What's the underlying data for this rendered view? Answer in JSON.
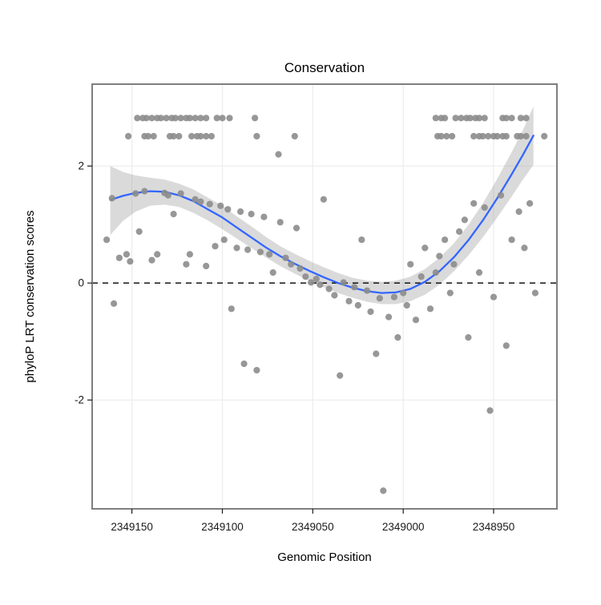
{
  "chart_data": {
    "type": "scatter",
    "title": "Conservation",
    "xlabel": "Genomic Position",
    "ylabel": "phyloP LRT conservation scores",
    "x_axis_reversed": true,
    "x_domain": [
      2349172,
      2348915
    ],
    "y_domain": [
      -3.86,
      3.4
    ],
    "x_ticks": [
      2349150,
      2349100,
      2349050,
      2349000,
      2348950
    ],
    "x_tick_labels": [
      "2349150",
      "2349100",
      "2349050",
      "2349000",
      "2348950"
    ],
    "y_ticks": [
      -2,
      0,
      2
    ],
    "y_tick_labels": [
      "-2",
      "0",
      "2"
    ],
    "grid": true,
    "legend": "none",
    "reference_line_y": 0,
    "colors": {
      "point": "#8C8C8C",
      "line": "#3366FF",
      "band": "#9E9E9E",
      "panel_bg": "#FFFFFF",
      "grid": "#ECECEC",
      "border": "#7F7F7F",
      "reference_line": "#000000",
      "tick": "#1A1A1A"
    },
    "points": [
      [
        2349147,
        2.82
      ],
      [
        2349144,
        2.82
      ],
      [
        2349142,
        2.82
      ],
      [
        2349139,
        2.82
      ],
      [
        2349136,
        2.82
      ],
      [
        2349134,
        2.82
      ],
      [
        2349131,
        2.82
      ],
      [
        2349128,
        2.82
      ],
      [
        2349126,
        2.82
      ],
      [
        2349123,
        2.82
      ],
      [
        2349120,
        2.82
      ],
      [
        2349118,
        2.82
      ],
      [
        2349115,
        2.82
      ],
      [
        2349112,
        2.82
      ],
      [
        2349109,
        2.82
      ],
      [
        2349103,
        2.82
      ],
      [
        2349100,
        2.82
      ],
      [
        2349096,
        2.82
      ],
      [
        2349082,
        2.82
      ],
      [
        2348982,
        2.82
      ],
      [
        2348979,
        2.82
      ],
      [
        2348977,
        2.82
      ],
      [
        2348971,
        2.82
      ],
      [
        2348968,
        2.82
      ],
      [
        2348965,
        2.82
      ],
      [
        2348963,
        2.82
      ],
      [
        2348960,
        2.82
      ],
      [
        2348958,
        2.82
      ],
      [
        2348955,
        2.82
      ],
      [
        2348945,
        2.82
      ],
      [
        2348943,
        2.82
      ],
      [
        2348940,
        2.82
      ],
      [
        2348935,
        2.82
      ],
      [
        2348932,
        2.82
      ],
      [
        2349152,
        2.51
      ],
      [
        2349143,
        2.51
      ],
      [
        2349141,
        2.51
      ],
      [
        2349138,
        2.51
      ],
      [
        2349129,
        2.51
      ],
      [
        2349127,
        2.51
      ],
      [
        2349124,
        2.51
      ],
      [
        2349117,
        2.51
      ],
      [
        2349114,
        2.51
      ],
      [
        2349112,
        2.51
      ],
      [
        2349109,
        2.51
      ],
      [
        2349106,
        2.51
      ],
      [
        2349081,
        2.51
      ],
      [
        2349060,
        2.51
      ],
      [
        2348981,
        2.51
      ],
      [
        2348979,
        2.51
      ],
      [
        2348976,
        2.51
      ],
      [
        2348973,
        2.51
      ],
      [
        2348961,
        2.51
      ],
      [
        2348958,
        2.51
      ],
      [
        2348956,
        2.51
      ],
      [
        2348953,
        2.51
      ],
      [
        2348950,
        2.51
      ],
      [
        2348948,
        2.51
      ],
      [
        2348945,
        2.51
      ],
      [
        2348943,
        2.51
      ],
      [
        2348937,
        2.51
      ],
      [
        2348935,
        2.51
      ],
      [
        2348932,
        2.51
      ],
      [
        2348922,
        2.51
      ],
      [
        2349164,
        0.74
      ],
      [
        2349161,
        1.45
      ],
      [
        2349160,
        -0.35
      ],
      [
        2349157,
        0.43
      ],
      [
        2349153,
        0.49
      ],
      [
        2349151,
        0.37
      ],
      [
        2349148,
        1.53
      ],
      [
        2349146,
        0.88
      ],
      [
        2349143,
        1.57
      ],
      [
        2349139,
        0.39
      ],
      [
        2349136,
        0.49
      ],
      [
        2349132,
        1.54
      ],
      [
        2349130,
        1.5
      ],
      [
        2349127,
        1.18
      ],
      [
        2349123,
        1.53
      ],
      [
        2349120,
        0.32
      ],
      [
        2349118,
        0.49
      ],
      [
        2349115,
        1.43
      ],
      [
        2349112,
        1.39
      ],
      [
        2349109,
        0.29
      ],
      [
        2349107,
        1.35
      ],
      [
        2349104,
        0.63
      ],
      [
        2349101,
        1.32
      ],
      [
        2349099,
        0.74
      ],
      [
        2349097,
        1.26
      ],
      [
        2349095,
        -0.44
      ],
      [
        2349092,
        0.6
      ],
      [
        2349090,
        1.22
      ],
      [
        2349088,
        -1.38
      ],
      [
        2349086,
        0.57
      ],
      [
        2349084,
        1.18
      ],
      [
        2349081,
        -1.49
      ],
      [
        2349079,
        0.53
      ],
      [
        2349077,
        1.13
      ],
      [
        2349074,
        0.49
      ],
      [
        2349072,
        0.18
      ],
      [
        2349069,
        2.2
      ],
      [
        2349068,
        1.04
      ],
      [
        2349065,
        0.43
      ],
      [
        2349062,
        0.32
      ],
      [
        2349059,
        0.94
      ],
      [
        2349057,
        0.25
      ],
      [
        2349054,
        0.11
      ],
      [
        2349051,
        0.01
      ],
      [
        2349048,
        0.07
      ],
      [
        2349046,
        -0.03
      ],
      [
        2349044,
        1.43
      ],
      [
        2349041,
        -0.1
      ],
      [
        2349038,
        -0.21
      ],
      [
        2349035,
        -1.58
      ],
      [
        2349033,
        0.01
      ],
      [
        2349030,
        -0.31
      ],
      [
        2349027,
        -0.07
      ],
      [
        2349025,
        -0.38
      ],
      [
        2349023,
        0.74
      ],
      [
        2349020,
        -0.13
      ],
      [
        2349018,
        -0.49
      ],
      [
        2349015,
        -1.21
      ],
      [
        2349013,
        -0.26
      ],
      [
        2349011,
        -3.55
      ],
      [
        2349008,
        -0.58
      ],
      [
        2349005,
        -0.24
      ],
      [
        2349003,
        -0.93
      ],
      [
        2349000,
        -0.17
      ],
      [
        2348998,
        -0.38
      ],
      [
        2348996,
        0.32
      ],
      [
        2348993,
        -0.63
      ],
      [
        2348990,
        0.11
      ],
      [
        2348988,
        0.6
      ],
      [
        2348985,
        -0.44
      ],
      [
        2348982,
        0.18
      ],
      [
        2348980,
        0.46
      ],
      [
        2348977,
        0.74
      ],
      [
        2348974,
        -0.17
      ],
      [
        2348972,
        0.32
      ],
      [
        2348969,
        0.88
      ],
      [
        2348966,
        1.08
      ],
      [
        2348964,
        -0.93
      ],
      [
        2348961,
        1.36
      ],
      [
        2348958,
        0.18
      ],
      [
        2348955,
        1.29
      ],
      [
        2348952,
        -2.18
      ],
      [
        2348950,
        -0.24
      ],
      [
        2348946,
        1.5
      ],
      [
        2348943,
        -1.07
      ],
      [
        2348940,
        0.74
      ],
      [
        2348936,
        1.22
      ],
      [
        2348933,
        0.6
      ],
      [
        2348930,
        1.36
      ],
      [
        2348927,
        -0.17
      ]
    ],
    "smooth_line": [
      [
        2349162,
        1.42
      ],
      [
        2349155,
        1.49
      ],
      [
        2349148,
        1.54
      ],
      [
        2349140,
        1.57
      ],
      [
        2349132,
        1.56
      ],
      [
        2349124,
        1.5
      ],
      [
        2349116,
        1.4
      ],
      [
        2349108,
        1.26
      ],
      [
        2349100,
        1.12
      ],
      [
        2349092,
        0.95
      ],
      [
        2349084,
        0.78
      ],
      [
        2349076,
        0.61
      ],
      [
        2349068,
        0.46
      ],
      [
        2349060,
        0.33
      ],
      [
        2349052,
        0.21
      ],
      [
        2349044,
        0.1
      ],
      [
        2349036,
        0.0
      ],
      [
        2349028,
        -0.08
      ],
      [
        2349020,
        -0.14
      ],
      [
        2349012,
        -0.17
      ],
      [
        2349004,
        -0.16
      ],
      [
        2348996,
        -0.1
      ],
      [
        2348988,
        0.02
      ],
      [
        2348980,
        0.2
      ],
      [
        2348972,
        0.44
      ],
      [
        2348964,
        0.73
      ],
      [
        2348956,
        1.07
      ],
      [
        2348948,
        1.45
      ],
      [
        2348940,
        1.86
      ],
      [
        2348934,
        2.18
      ],
      [
        2348928,
        2.52
      ]
    ],
    "confidence_band": [
      [
        2349162,
        0.82,
        2.0
      ],
      [
        2349155,
        1.06,
        1.9
      ],
      [
        2349148,
        1.22,
        1.84
      ],
      [
        2349140,
        1.32,
        1.8
      ],
      [
        2349132,
        1.34,
        1.77
      ],
      [
        2349124,
        1.3,
        1.7
      ],
      [
        2349116,
        1.2,
        1.6
      ],
      [
        2349108,
        1.07,
        1.46
      ],
      [
        2349100,
        0.92,
        1.32
      ],
      [
        2349092,
        0.76,
        1.14
      ],
      [
        2349084,
        0.6,
        0.97
      ],
      [
        2349076,
        0.44,
        0.79
      ],
      [
        2349068,
        0.29,
        0.63
      ],
      [
        2349060,
        0.16,
        0.5
      ],
      [
        2349052,
        0.04,
        0.38
      ],
      [
        2349044,
        -0.07,
        0.27
      ],
      [
        2349036,
        -0.17,
        0.17
      ],
      [
        2349028,
        -0.25,
        0.09
      ],
      [
        2349020,
        -0.32,
        0.04
      ],
      [
        2349012,
        -0.36,
        0.02
      ],
      [
        2349004,
        -0.36,
        0.04
      ],
      [
        2348996,
        -0.31,
        0.11
      ],
      [
        2348988,
        -0.2,
        0.24
      ],
      [
        2348980,
        -0.03,
        0.43
      ],
      [
        2348972,
        0.2,
        0.68
      ],
      [
        2348964,
        0.47,
        0.99
      ],
      [
        2348956,
        0.78,
        1.36
      ],
      [
        2348948,
        1.12,
        1.78
      ],
      [
        2348940,
        1.48,
        2.24
      ],
      [
        2348934,
        1.76,
        2.6
      ],
      [
        2348928,
        2.02,
        3.02
      ]
    ]
  }
}
